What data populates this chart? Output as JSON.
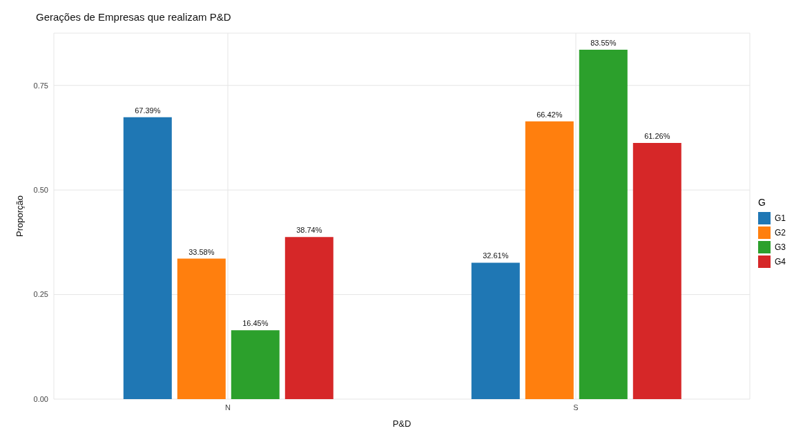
{
  "chart_data": {
    "type": "bar",
    "title": "Gerações de Empresas que realizam P&D",
    "xlabel": "P&D",
    "ylabel": "Proporção",
    "legend_title": "G",
    "legend": "right",
    "grid": true,
    "categories": [
      "N",
      "S"
    ],
    "series": [
      {
        "name": "G1",
        "color": "#1f77b4",
        "values": [
          0.6739,
          0.3261
        ],
        "value_labels": [
          "67.39%",
          "32.61%"
        ]
      },
      {
        "name": "G2",
        "color": "#ff7f0e",
        "values": [
          0.3358,
          0.6642
        ],
        "value_labels": [
          "33.58%",
          "66.42%"
        ]
      },
      {
        "name": "G3",
        "color": "#2ca02c",
        "values": [
          0.1645,
          0.8355
        ],
        "value_labels": [
          "16.45%",
          "83.55%"
        ]
      },
      {
        "name": "G4",
        "color": "#d62728",
        "values": [
          0.3874,
          0.6126
        ],
        "value_labels": [
          "38.74%",
          "61.26%"
        ]
      }
    ],
    "ylim": [
      0,
      0.875
    ],
    "yticks": [
      {
        "value": 0,
        "label": "0.00"
      },
      0.25,
      {
        "value": 0.5,
        "label": "0.50"
      },
      0.75
    ]
  }
}
